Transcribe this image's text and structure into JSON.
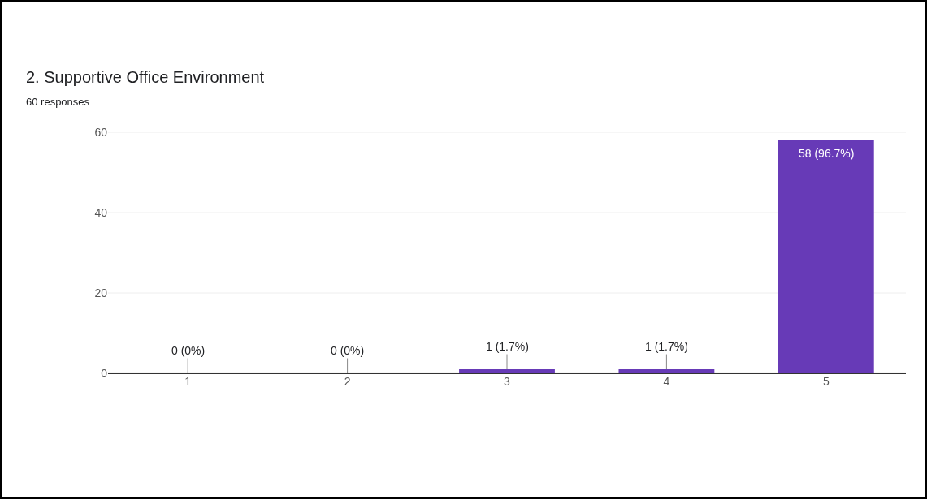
{
  "chart_data": {
    "type": "bar",
    "title": "2. Supportive Office Environment",
    "subtitle": "60 responses",
    "categories": [
      "1",
      "2",
      "3",
      "4",
      "5"
    ],
    "values": [
      0,
      0,
      1,
      1,
      58
    ],
    "value_labels": [
      "0 (0%)",
      "0 (0%)",
      "1 (1.7%)",
      "1 (1.7%)",
      "58 (96.7%)"
    ],
    "color": "#673ab7",
    "ylim": [
      0,
      60
    ],
    "yticks": [
      0,
      20,
      40,
      60
    ],
    "grid": "y"
  }
}
